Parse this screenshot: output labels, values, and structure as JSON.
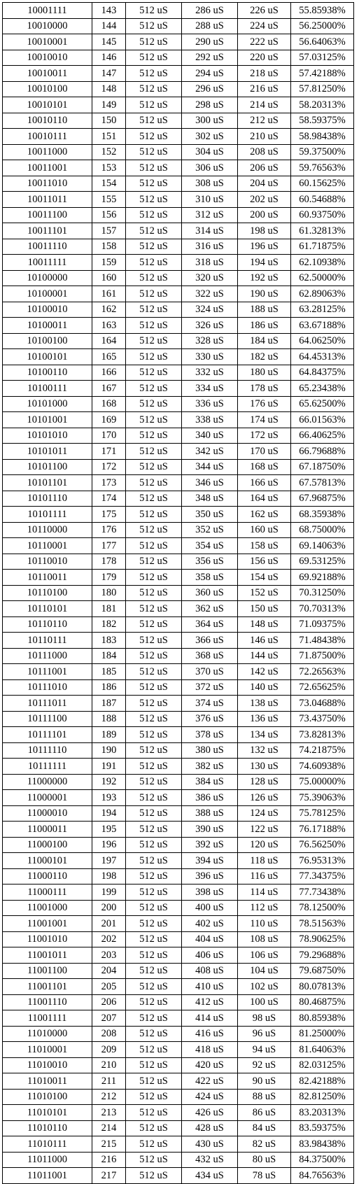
{
  "table": {
    "rows": [
      [
        "10001111",
        "143",
        "512 uS",
        "286 uS",
        "226 uS",
        "55.85938%"
      ],
      [
        "10010000",
        "144",
        "512 uS",
        "288 uS",
        "224 uS",
        "56.25000%"
      ],
      [
        "10010001",
        "145",
        "512 uS",
        "290 uS",
        "222 uS",
        "56.64063%"
      ],
      [
        "10010010",
        "146",
        "512 uS",
        "292 uS",
        "220 uS",
        "57.03125%"
      ],
      [
        "10010011",
        "147",
        "512 uS",
        "294 uS",
        "218 uS",
        "57.42188%"
      ],
      [
        "10010100",
        "148",
        "512 uS",
        "296 uS",
        "216 uS",
        "57.81250%"
      ],
      [
        "10010101",
        "149",
        "512 uS",
        "298 uS",
        "214 uS",
        "58.20313%"
      ],
      [
        "10010110",
        "150",
        "512 uS",
        "300 uS",
        "212 uS",
        "58.59375%"
      ],
      [
        "10010111",
        "151",
        "512 uS",
        "302 uS",
        "210 uS",
        "58.98438%"
      ],
      [
        "10011000",
        "152",
        "512 uS",
        "304 uS",
        "208 uS",
        "59.37500%"
      ],
      [
        "10011001",
        "153",
        "512 uS",
        "306 uS",
        "206 uS",
        "59.76563%"
      ],
      [
        "10011010",
        "154",
        "512 uS",
        "308 uS",
        "204 uS",
        "60.15625%"
      ],
      [
        "10011011",
        "155",
        "512 uS",
        "310 uS",
        "202 uS",
        "60.54688%"
      ],
      [
        "10011100",
        "156",
        "512 uS",
        "312 uS",
        "200 uS",
        "60.93750%"
      ],
      [
        "10011101",
        "157",
        "512 uS",
        "314 uS",
        "198 uS",
        "61.32813%"
      ],
      [
        "10011110",
        "158",
        "512 uS",
        "316 uS",
        "196 uS",
        "61.71875%"
      ],
      [
        "10011111",
        "159",
        "512 uS",
        "318 uS",
        "194 uS",
        "62.10938%"
      ],
      [
        "10100000",
        "160",
        "512 uS",
        "320 uS",
        "192 uS",
        "62.50000%"
      ],
      [
        "10100001",
        "161",
        "512 uS",
        "322 uS",
        "190 uS",
        "62.89063%"
      ],
      [
        "10100010",
        "162",
        "512 uS",
        "324 uS",
        "188 uS",
        "63.28125%"
      ],
      [
        "10100011",
        "163",
        "512 uS",
        "326 uS",
        "186 uS",
        "63.67188%"
      ],
      [
        "10100100",
        "164",
        "512 uS",
        "328 uS",
        "184 uS",
        "64.06250%"
      ],
      [
        "10100101",
        "165",
        "512 uS",
        "330 uS",
        "182 uS",
        "64.45313%"
      ],
      [
        "10100110",
        "166",
        "512 uS",
        "332 uS",
        "180 uS",
        "64.84375%"
      ],
      [
        "10100111",
        "167",
        "512 uS",
        "334 uS",
        "178 uS",
        "65.23438%"
      ],
      [
        "10101000",
        "168",
        "512 uS",
        "336 uS",
        "176 uS",
        "65.62500%"
      ],
      [
        "10101001",
        "169",
        "512 uS",
        "338 uS",
        "174 uS",
        "66.01563%"
      ],
      [
        "10101010",
        "170",
        "512 uS",
        "340 uS",
        "172 uS",
        "66.40625%"
      ],
      [
        "10101011",
        "171",
        "512 uS",
        "342 uS",
        "170 uS",
        "66.79688%"
      ],
      [
        "10101100",
        "172",
        "512 uS",
        "344 uS",
        "168 uS",
        "67.18750%"
      ],
      [
        "10101101",
        "173",
        "512 uS",
        "346 uS",
        "166 uS",
        "67.57813%"
      ],
      [
        "10101110",
        "174",
        "512 uS",
        "348 uS",
        "164 uS",
        "67.96875%"
      ],
      [
        "10101111",
        "175",
        "512 uS",
        "350 uS",
        "162 uS",
        "68.35938%"
      ],
      [
        "10110000",
        "176",
        "512 uS",
        "352 uS",
        "160 uS",
        "68.75000%"
      ],
      [
        "10110001",
        "177",
        "512 uS",
        "354 uS",
        "158 uS",
        "69.14063%"
      ],
      [
        "10110010",
        "178",
        "512 uS",
        "356 uS",
        "156 uS",
        "69.53125%"
      ],
      [
        "10110011",
        "179",
        "512 uS",
        "358 uS",
        "154 uS",
        "69.92188%"
      ],
      [
        "10110100",
        "180",
        "512 uS",
        "360 uS",
        "152 uS",
        "70.31250%"
      ],
      [
        "10110101",
        "181",
        "512 uS",
        "362 uS",
        "150 uS",
        "70.70313%"
      ],
      [
        "10110110",
        "182",
        "512 uS",
        "364 uS",
        "148 uS",
        "71.09375%"
      ],
      [
        "10110111",
        "183",
        "512 uS",
        "366 uS",
        "146 uS",
        "71.48438%"
      ],
      [
        "10111000",
        "184",
        "512 uS",
        "368 uS",
        "144 uS",
        "71.87500%"
      ],
      [
        "10111001",
        "185",
        "512 uS",
        "370 uS",
        "142 uS",
        "72.26563%"
      ],
      [
        "10111010",
        "186",
        "512 uS",
        "372 uS",
        "140 uS",
        "72.65625%"
      ],
      [
        "10111011",
        "187",
        "512 uS",
        "374 uS",
        "138 uS",
        "73.04688%"
      ],
      [
        "10111100",
        "188",
        "512 uS",
        "376 uS",
        "136 uS",
        "73.43750%"
      ],
      [
        "10111101",
        "189",
        "512 uS",
        "378 uS",
        "134 uS",
        "73.82813%"
      ],
      [
        "10111110",
        "190",
        "512 uS",
        "380 uS",
        "132 uS",
        "74.21875%"
      ],
      [
        "10111111",
        "191",
        "512 uS",
        "382 uS",
        "130 uS",
        "74.60938%"
      ],
      [
        "11000000",
        "192",
        "512 uS",
        "384 uS",
        "128 uS",
        "75.00000%"
      ],
      [
        "11000001",
        "193",
        "512 uS",
        "386 uS",
        "126 uS",
        "75.39063%"
      ],
      [
        "11000010",
        "194",
        "512 uS",
        "388 uS",
        "124 uS",
        "75.78125%"
      ],
      [
        "11000011",
        "195",
        "512 uS",
        "390 uS",
        "122 uS",
        "76.17188%"
      ],
      [
        "11000100",
        "196",
        "512 uS",
        "392 uS",
        "120 uS",
        "76.56250%"
      ],
      [
        "11000101",
        "197",
        "512 uS",
        "394 uS",
        "118 uS",
        "76.95313%"
      ],
      [
        "11000110",
        "198",
        "512 uS",
        "396 uS",
        "116 uS",
        "77.34375%"
      ],
      [
        "11000111",
        "199",
        "512 uS",
        "398 uS",
        "114 uS",
        "77.73438%"
      ],
      [
        "11001000",
        "200",
        "512 uS",
        "400 uS",
        "112 uS",
        "78.12500%"
      ],
      [
        "11001001",
        "201",
        "512 uS",
        "402 uS",
        "110 uS",
        "78.51563%"
      ],
      [
        "11001010",
        "202",
        "512 uS",
        "404 uS",
        "108 uS",
        "78.90625%"
      ],
      [
        "11001011",
        "203",
        "512 uS",
        "406 uS",
        "106 uS",
        "79.29688%"
      ],
      [
        "11001100",
        "204",
        "512 uS",
        "408 uS",
        "104 uS",
        "79.68750%"
      ],
      [
        "11001101",
        "205",
        "512 uS",
        "410 uS",
        "102 uS",
        "80.07813%"
      ],
      [
        "11001110",
        "206",
        "512 uS",
        "412 uS",
        "100 uS",
        "80.46875%"
      ],
      [
        "11001111",
        "207",
        "512 uS",
        "414 uS",
        "98 uS",
        "80.85938%"
      ],
      [
        "11010000",
        "208",
        "512 uS",
        "416 uS",
        "96 uS",
        "81.25000%"
      ],
      [
        "11010001",
        "209",
        "512 uS",
        "418 uS",
        "94 uS",
        "81.64063%"
      ],
      [
        "11010010",
        "210",
        "512 uS",
        "420 uS",
        "92 uS",
        "82.03125%"
      ],
      [
        "11010011",
        "211",
        "512 uS",
        "422 uS",
        "90 uS",
        "82.42188%"
      ],
      [
        "11010100",
        "212",
        "512 uS",
        "424 uS",
        "88 uS",
        "82.81250%"
      ],
      [
        "11010101",
        "213",
        "512 uS",
        "426 uS",
        "86 uS",
        "83.20313%"
      ],
      [
        "11010110",
        "214",
        "512 uS",
        "428 uS",
        "84 uS",
        "83.59375%"
      ],
      [
        "11010111",
        "215",
        "512 uS",
        "430 uS",
        "82 uS",
        "83.98438%"
      ],
      [
        "11011000",
        "216",
        "512 uS",
        "432 uS",
        "80 uS",
        "84.37500%"
      ],
      [
        "11011001",
        "217",
        "512 uS",
        "434 uS",
        "78 uS",
        "84.76563%"
      ]
    ]
  }
}
